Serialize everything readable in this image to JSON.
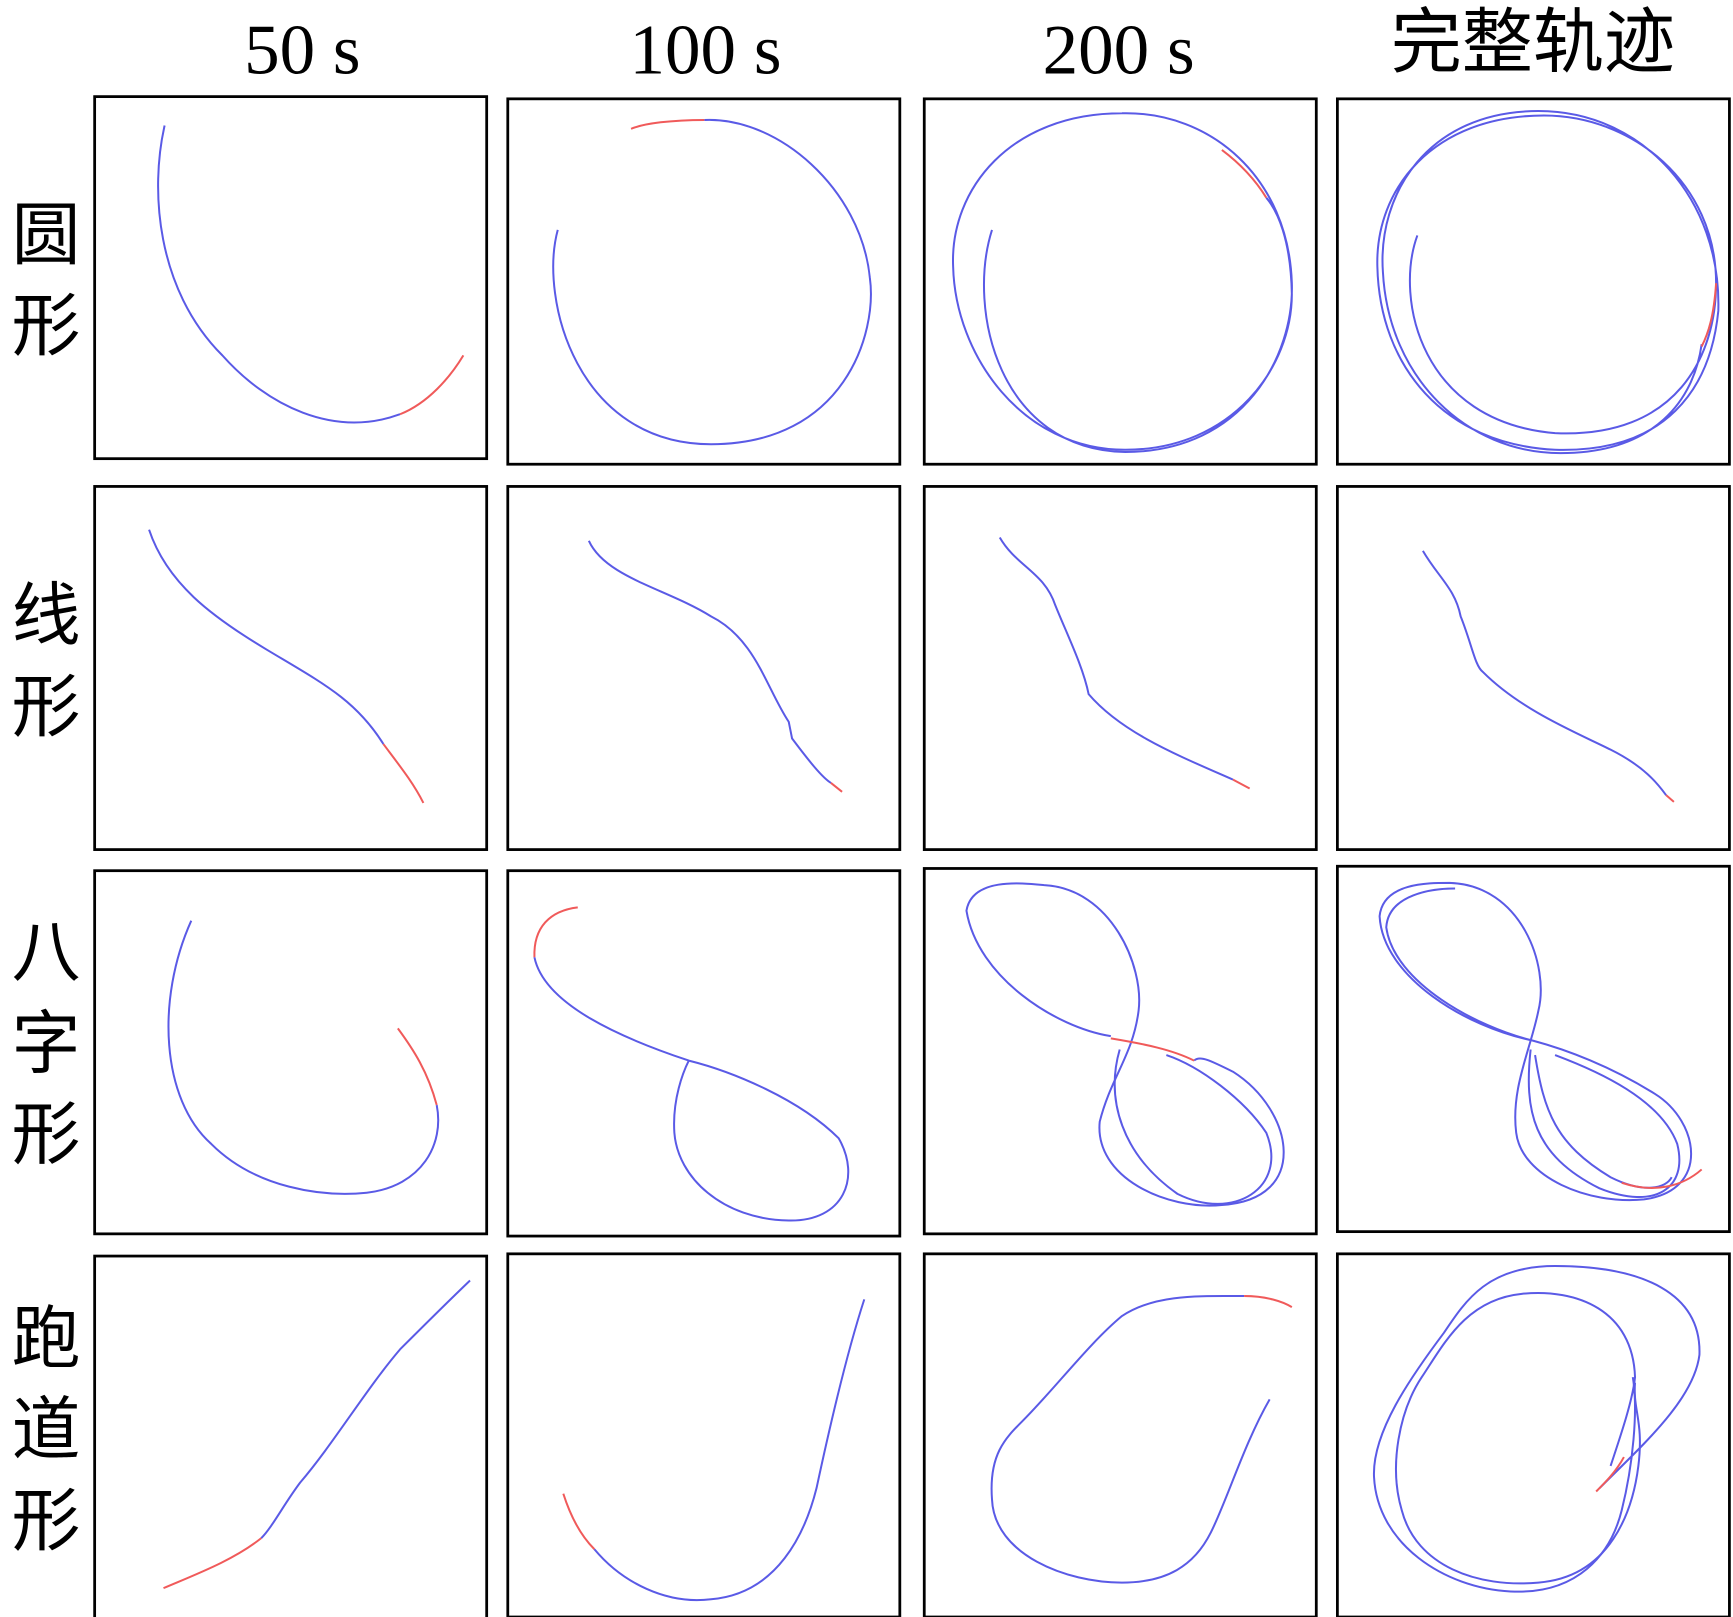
{
  "columns": [
    "50 s",
    "100 s",
    "200 s",
    "完整轨迹"
  ],
  "rows": [
    "圆形",
    "线形",
    "八字形",
    "跑道形"
  ]
}
